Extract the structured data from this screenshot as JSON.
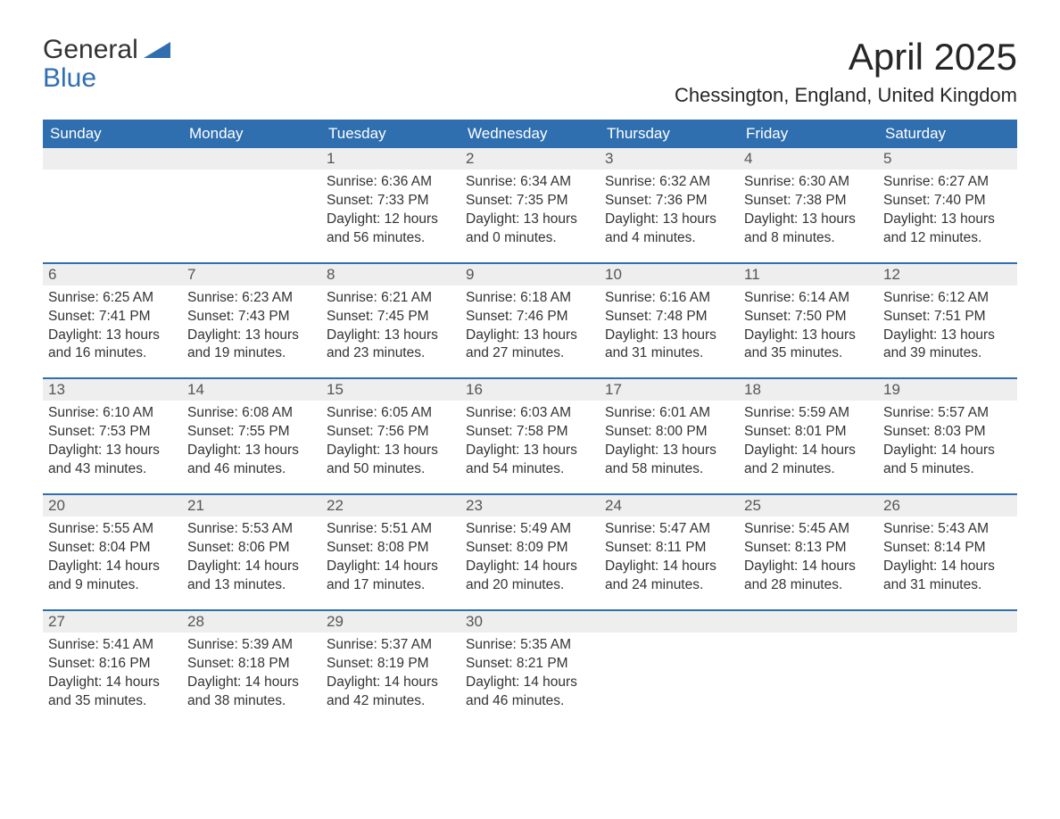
{
  "logo": {
    "word1": "General",
    "word2": "Blue",
    "accent_color": "#2f6fb0"
  },
  "title": "April 2025",
  "location": "Chessington, England, United Kingdom",
  "colors": {
    "header_bg": "#2f6fb0",
    "header_text": "#ffffff",
    "daynum_bg": "#eeeeee",
    "row_border": "#2f6fb0",
    "text": "#333333"
  },
  "day_headers": [
    "Sunday",
    "Monday",
    "Tuesday",
    "Wednesday",
    "Thursday",
    "Friday",
    "Saturday"
  ],
  "weeks": [
    [
      null,
      null,
      {
        "d": "1",
        "sr": "6:36 AM",
        "ss": "7:33 PM",
        "dl": "12 hours and 56 minutes."
      },
      {
        "d": "2",
        "sr": "6:34 AM",
        "ss": "7:35 PM",
        "dl": "13 hours and 0 minutes."
      },
      {
        "d": "3",
        "sr": "6:32 AM",
        "ss": "7:36 PM",
        "dl": "13 hours and 4 minutes."
      },
      {
        "d": "4",
        "sr": "6:30 AM",
        "ss": "7:38 PM",
        "dl": "13 hours and 8 minutes."
      },
      {
        "d": "5",
        "sr": "6:27 AM",
        "ss": "7:40 PM",
        "dl": "13 hours and 12 minutes."
      }
    ],
    [
      {
        "d": "6",
        "sr": "6:25 AM",
        "ss": "7:41 PM",
        "dl": "13 hours and 16 minutes."
      },
      {
        "d": "7",
        "sr": "6:23 AM",
        "ss": "7:43 PM",
        "dl": "13 hours and 19 minutes."
      },
      {
        "d": "8",
        "sr": "6:21 AM",
        "ss": "7:45 PM",
        "dl": "13 hours and 23 minutes."
      },
      {
        "d": "9",
        "sr": "6:18 AM",
        "ss": "7:46 PM",
        "dl": "13 hours and 27 minutes."
      },
      {
        "d": "10",
        "sr": "6:16 AM",
        "ss": "7:48 PM",
        "dl": "13 hours and 31 minutes."
      },
      {
        "d": "11",
        "sr": "6:14 AM",
        "ss": "7:50 PM",
        "dl": "13 hours and 35 minutes."
      },
      {
        "d": "12",
        "sr": "6:12 AM",
        "ss": "7:51 PM",
        "dl": "13 hours and 39 minutes."
      }
    ],
    [
      {
        "d": "13",
        "sr": "6:10 AM",
        "ss": "7:53 PM",
        "dl": "13 hours and 43 minutes."
      },
      {
        "d": "14",
        "sr": "6:08 AM",
        "ss": "7:55 PM",
        "dl": "13 hours and 46 minutes."
      },
      {
        "d": "15",
        "sr": "6:05 AM",
        "ss": "7:56 PM",
        "dl": "13 hours and 50 minutes."
      },
      {
        "d": "16",
        "sr": "6:03 AM",
        "ss": "7:58 PM",
        "dl": "13 hours and 54 minutes."
      },
      {
        "d": "17",
        "sr": "6:01 AM",
        "ss": "8:00 PM",
        "dl": "13 hours and 58 minutes."
      },
      {
        "d": "18",
        "sr": "5:59 AM",
        "ss": "8:01 PM",
        "dl": "14 hours and 2 minutes."
      },
      {
        "d": "19",
        "sr": "5:57 AM",
        "ss": "8:03 PM",
        "dl": "14 hours and 5 minutes."
      }
    ],
    [
      {
        "d": "20",
        "sr": "5:55 AM",
        "ss": "8:04 PM",
        "dl": "14 hours and 9 minutes."
      },
      {
        "d": "21",
        "sr": "5:53 AM",
        "ss": "8:06 PM",
        "dl": "14 hours and 13 minutes."
      },
      {
        "d": "22",
        "sr": "5:51 AM",
        "ss": "8:08 PM",
        "dl": "14 hours and 17 minutes."
      },
      {
        "d": "23",
        "sr": "5:49 AM",
        "ss": "8:09 PM",
        "dl": "14 hours and 20 minutes."
      },
      {
        "d": "24",
        "sr": "5:47 AM",
        "ss": "8:11 PM",
        "dl": "14 hours and 24 minutes."
      },
      {
        "d": "25",
        "sr": "5:45 AM",
        "ss": "8:13 PM",
        "dl": "14 hours and 28 minutes."
      },
      {
        "d": "26",
        "sr": "5:43 AM",
        "ss": "8:14 PM",
        "dl": "14 hours and 31 minutes."
      }
    ],
    [
      {
        "d": "27",
        "sr": "5:41 AM",
        "ss": "8:16 PM",
        "dl": "14 hours and 35 minutes."
      },
      {
        "d": "28",
        "sr": "5:39 AM",
        "ss": "8:18 PM",
        "dl": "14 hours and 38 minutes."
      },
      {
        "d": "29",
        "sr": "5:37 AM",
        "ss": "8:19 PM",
        "dl": "14 hours and 42 minutes."
      },
      {
        "d": "30",
        "sr": "5:35 AM",
        "ss": "8:21 PM",
        "dl": "14 hours and 46 minutes."
      },
      null,
      null,
      null
    ]
  ],
  "labels": {
    "sunrise": "Sunrise: ",
    "sunset": "Sunset: ",
    "daylight": "Daylight: "
  }
}
